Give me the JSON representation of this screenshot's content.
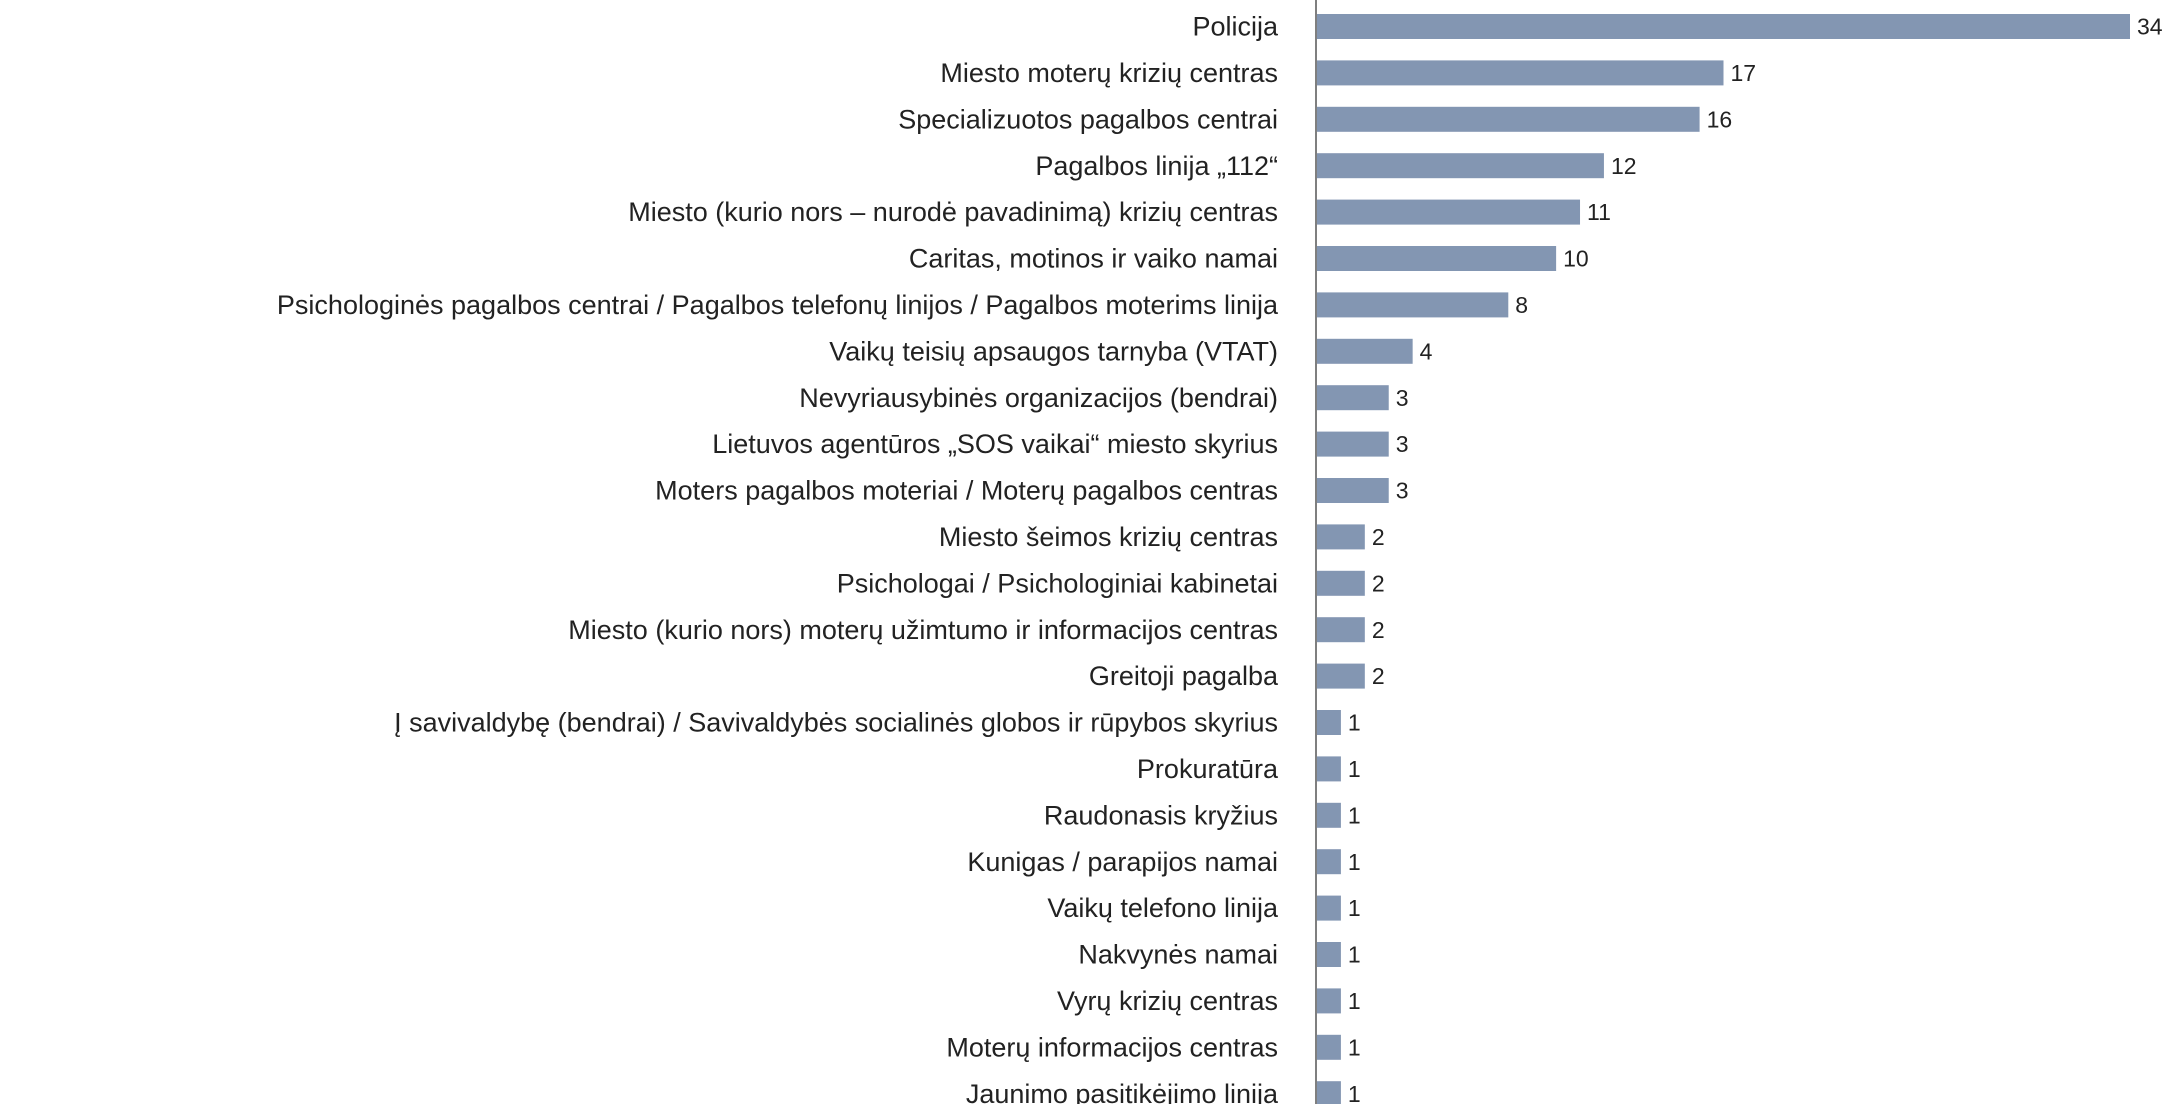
{
  "chart_data": {
    "type": "bar",
    "orientation": "horizontal",
    "color": "#8396b2",
    "categories": [
      "Policija",
      "Miesto moterų krizių centras",
      "Specializuotos pagalbos centrai",
      "Pagalbos linija „112“",
      "Miesto (kurio nors – nurodė pavadinimą) krizių centras",
      "Caritas, motinos ir vaiko namai",
      "Psichologinės pagalbos centrai / Pagalbos telefonų linijos / Pagalbos moterims linija",
      "Vaikų teisių apsaugos tarnyba (VTAT)",
      "Nevyriausybinės organizacijos (bendrai)",
      "Lietuvos agentūros „SOS vaikai“ miesto skyrius",
      "Moters pagalbos moteriai / Moterų pagalbos centras",
      "Miesto šeimos krizių centras",
      "Psichologai / Psichologiniai kabinetai",
      "Miesto (kurio nors) moterų užimtumo ir informacijos centras",
      "Greitoji pagalba",
      "Į savivaldybę (bendrai) / Savivaldybės socialinės globos ir rūpybos skyrius",
      "Prokuratūra",
      "Raudonasis kryžius",
      "Kunigas / parapijos namai",
      "Vaikų telefono linija",
      "Nakvynės namai",
      "Vyrų krizių centras",
      "Moterų informacijos centras",
      "Jaunimo pasitikėjimo linija"
    ],
    "values": [
      34,
      17,
      16,
      12,
      11,
      10,
      8,
      4,
      3,
      3,
      3,
      2,
      2,
      2,
      2,
      1,
      1,
      1,
      1,
      1,
      1,
      1,
      1,
      1
    ]
  }
}
